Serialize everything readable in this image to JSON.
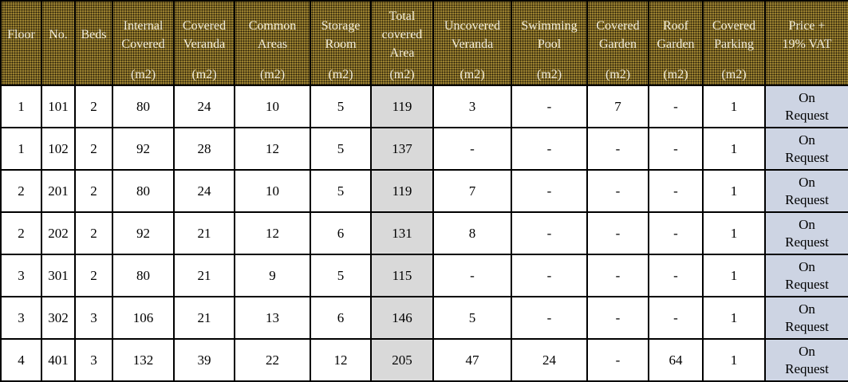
{
  "table": {
    "description": "Apartment availability and area schedule price list",
    "columns": [
      {
        "label": "Floor",
        "unit": "",
        "highlight": ""
      },
      {
        "label": "No.",
        "unit": "",
        "highlight": ""
      },
      {
        "label": "Beds",
        "unit": "",
        "highlight": ""
      },
      {
        "label": "Internal\nCovered",
        "unit": "(m2)",
        "highlight": ""
      },
      {
        "label": "Covered\nVeranda",
        "unit": "(m2)",
        "highlight": ""
      },
      {
        "label": "Common\nAreas",
        "unit": "(m2)",
        "highlight": ""
      },
      {
        "label": "Storage\nRoom",
        "unit": "(m2)",
        "highlight": ""
      },
      {
        "label": "Total\ncovered\nArea",
        "unit": "(m2)",
        "highlight": "total"
      },
      {
        "label": "Uncovered\nVeranda",
        "unit": "(m2)",
        "highlight": ""
      },
      {
        "label": "Swimming\nPool",
        "unit": "(m2)",
        "highlight": ""
      },
      {
        "label": "Covered\nGarden",
        "unit": "(m2)",
        "highlight": ""
      },
      {
        "label": "Roof\nGarden",
        "unit": "(m2)",
        "highlight": ""
      },
      {
        "label": "Covered\nParking",
        "unit": "(m2)",
        "highlight": ""
      },
      {
        "label": "Price +\n19% VAT",
        "unit": "",
        "highlight": "price"
      }
    ],
    "rows": [
      [
        "1",
        "101",
        "2",
        "80",
        "24",
        "10",
        "5",
        "119",
        "3",
        "-",
        "7",
        "-",
        "1",
        "On Request"
      ],
      [
        "1",
        "102",
        "2",
        "92",
        "28",
        "12",
        "5",
        "137",
        "-",
        "-",
        "-",
        "-",
        "1",
        "On Request"
      ],
      [
        "2",
        "201",
        "2",
        "80",
        "24",
        "10",
        "5",
        "119",
        "7",
        "-",
        "-",
        "-",
        "1",
        "On Request"
      ],
      [
        "2",
        "202",
        "2",
        "92",
        "21",
        "12",
        "6",
        "131",
        "8",
        "-",
        "-",
        "-",
        "1",
        "On Request"
      ],
      [
        "3",
        "301",
        "2",
        "80",
        "21",
        "9",
        "5",
        "115",
        "-",
        "-",
        "-",
        "-",
        "1",
        "On Request"
      ],
      [
        "3",
        "302",
        "3",
        "106",
        "21",
        "13",
        "6",
        "146",
        "5",
        "-",
        "-",
        "-",
        "1",
        "On Request"
      ],
      [
        "4",
        "401",
        "3",
        "132",
        "39",
        "22",
        "12",
        "205",
        "47",
        "24",
        "-",
        "64",
        "1",
        "On Request"
      ]
    ]
  },
  "colors": {
    "header_bg": "#9a8030",
    "header_dot": "#221a06",
    "header_text": "#f3eedb",
    "total_column_bg": "#d9d9d9",
    "price_column_bg": "#cdd4e3",
    "border": "#000000",
    "body_text": "#000000"
  }
}
